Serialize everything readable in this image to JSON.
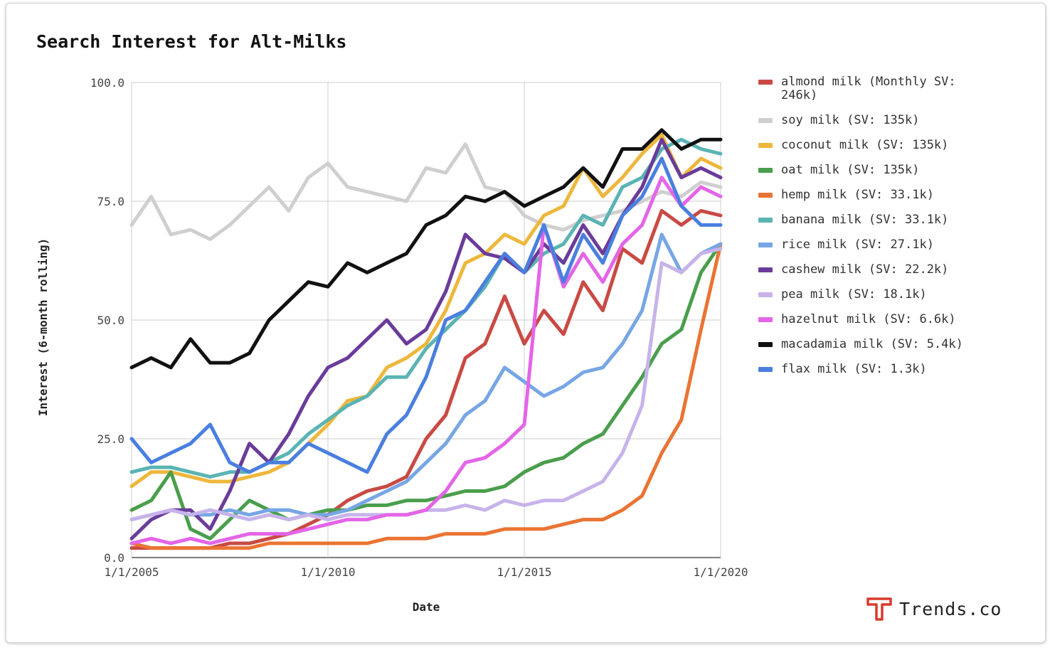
{
  "chart_data": {
    "type": "line",
    "title": "Search Interest for Alt-Milks",
    "xlabel": "Date",
    "ylabel": "Interest (6-month rolling)",
    "ylim": [
      0,
      100
    ],
    "xlim": [
      "2005-01-01",
      "2020-01-01"
    ],
    "y_ticks": [
      "0.0",
      "25.0",
      "50.0",
      "75.0",
      "100.0"
    ],
    "x_ticks": [
      "1/1/2005",
      "1/1/2010",
      "1/1/2015",
      "1/1/2020"
    ],
    "grid": true,
    "legend_position": "right",
    "x": [
      2005.0,
      2005.5,
      2006.0,
      2006.5,
      2007.0,
      2007.5,
      2008.0,
      2008.5,
      2009.0,
      2009.5,
      2010.0,
      2010.5,
      2011.0,
      2011.5,
      2012.0,
      2012.5,
      2013.0,
      2013.5,
      2014.0,
      2014.5,
      2015.0,
      2015.5,
      2016.0,
      2016.5,
      2017.0,
      2017.5,
      2018.0,
      2018.5,
      2019.0,
      2019.5,
      2020.0
    ],
    "series": [
      {
        "name": "almond milk (Monthly SV: 246k)",
        "color": "#c94a44",
        "values": [
          2,
          2,
          2,
          2,
          2,
          3,
          3,
          4,
          5,
          7,
          9,
          12,
          14,
          15,
          17,
          25,
          30,
          42,
          45,
          55,
          45,
          52,
          47,
          58,
          52,
          65,
          62,
          73,
          70,
          73,
          72
        ]
      },
      {
        "name": "soy milk (SV: 135k)",
        "color": "#cfcfcf",
        "values": [
          70,
          76,
          68,
          69,
          67,
          70,
          74,
          78,
          73,
          80,
          83,
          78,
          77,
          76,
          75,
          82,
          81,
          87,
          78,
          77,
          72,
          70,
          69,
          71,
          72,
          73,
          75,
          77,
          76,
          79,
          78
        ]
      },
      {
        "name": "coconut milk (SV: 135k)",
        "color": "#eeb73c",
        "values": [
          15,
          18,
          18,
          17,
          16,
          16,
          17,
          18,
          20,
          24,
          28,
          33,
          34,
          40,
          42,
          45,
          52,
          62,
          64,
          68,
          66,
          72,
          74,
          82,
          76,
          80,
          85,
          89,
          80,
          84,
          82
        ]
      },
      {
        "name": "oat milk (SV: 135k)",
        "color": "#4a9e4c",
        "values": [
          10,
          12,
          18,
          6,
          4,
          8,
          12,
          10,
          8,
          9,
          10,
          10,
          11,
          11,
          12,
          12,
          13,
          14,
          14,
          15,
          18,
          20,
          21,
          24,
          26,
          32,
          38,
          45,
          48,
          60,
          66
        ]
      },
      {
        "name": "hemp milk (SV: 33.1k)",
        "color": "#ea7434",
        "values": [
          3,
          2,
          2,
          2,
          2,
          2,
          2,
          3,
          3,
          3,
          3,
          3,
          3,
          4,
          4,
          4,
          5,
          5,
          5,
          6,
          6,
          6,
          7,
          8,
          8,
          10,
          13,
          22,
          29,
          48,
          66
        ]
      },
      {
        "name": "banana milk (SV: 33.1k)",
        "color": "#5ab4b3",
        "values": [
          18,
          19,
          19,
          18,
          17,
          18,
          18,
          20,
          22,
          26,
          29,
          32,
          34,
          38,
          38,
          44,
          48,
          52,
          57,
          64,
          60,
          64,
          66,
          72,
          70,
          78,
          80,
          86,
          88,
          86,
          85
        ]
      },
      {
        "name": "rice milk (SV: 27.1k)",
        "color": "#77a6e4",
        "values": [
          8,
          9,
          10,
          9,
          9,
          10,
          9,
          10,
          10,
          9,
          9,
          10,
          12,
          14,
          16,
          20,
          24,
          30,
          33,
          40,
          37,
          34,
          36,
          39,
          40,
          45,
          52,
          68,
          60,
          64,
          66
        ]
      },
      {
        "name": "cashew milk (SV: 22.2k)",
        "color": "#6a3c9a",
        "values": [
          4,
          8,
          10,
          10,
          6,
          14,
          24,
          20,
          26,
          34,
          40,
          42,
          46,
          50,
          45,
          48,
          56,
          68,
          64,
          63,
          60,
          66,
          62,
          70,
          64,
          72,
          78,
          88,
          80,
          82,
          80
        ]
      },
      {
        "name": "pea milk (SV: 18.1k)",
        "color": "#c7b3ea",
        "values": [
          8,
          9,
          10,
          9,
          10,
          9,
          8,
          9,
          8,
          9,
          8,
          9,
          9,
          9,
          9,
          10,
          10,
          11,
          10,
          12,
          11,
          12,
          12,
          14,
          16,
          22,
          32,
          62,
          60,
          64,
          65
        ]
      },
      {
        "name": "hazelnut milk (SV: 6.6k)",
        "color": "#e465e7",
        "values": [
          3,
          4,
          3,
          4,
          3,
          4,
          5,
          5,
          5,
          6,
          7,
          8,
          8,
          9,
          9,
          10,
          14,
          20,
          21,
          24,
          28,
          70,
          57,
          64,
          58,
          66,
          70,
          80,
          74,
          78,
          76
        ]
      },
      {
        "name": "macadamia milk (SV: 5.4k)",
        "color": "#111111",
        "values": [
          40,
          42,
          40,
          46,
          41,
          41,
          43,
          50,
          54,
          58,
          57,
          62,
          60,
          62,
          64,
          70,
          72,
          76,
          75,
          77,
          74,
          76,
          78,
          82,
          78,
          86,
          86,
          90,
          86,
          88,
          88
        ]
      },
      {
        "name": "flax milk (SV: 1.3k)",
        "color": "#4a7fdf",
        "values": [
          25,
          20,
          22,
          24,
          28,
          20,
          18,
          20,
          20,
          24,
          22,
          20,
          18,
          26,
          30,
          38,
          50,
          52,
          58,
          64,
          60,
          70,
          58,
          68,
          62,
          72,
          76,
          84,
          74,
          70,
          70
        ]
      }
    ]
  },
  "brand": {
    "name": "Trends.co",
    "logo_icon": "trends-t-logo-icon",
    "logo_color": "#d83a2f"
  }
}
